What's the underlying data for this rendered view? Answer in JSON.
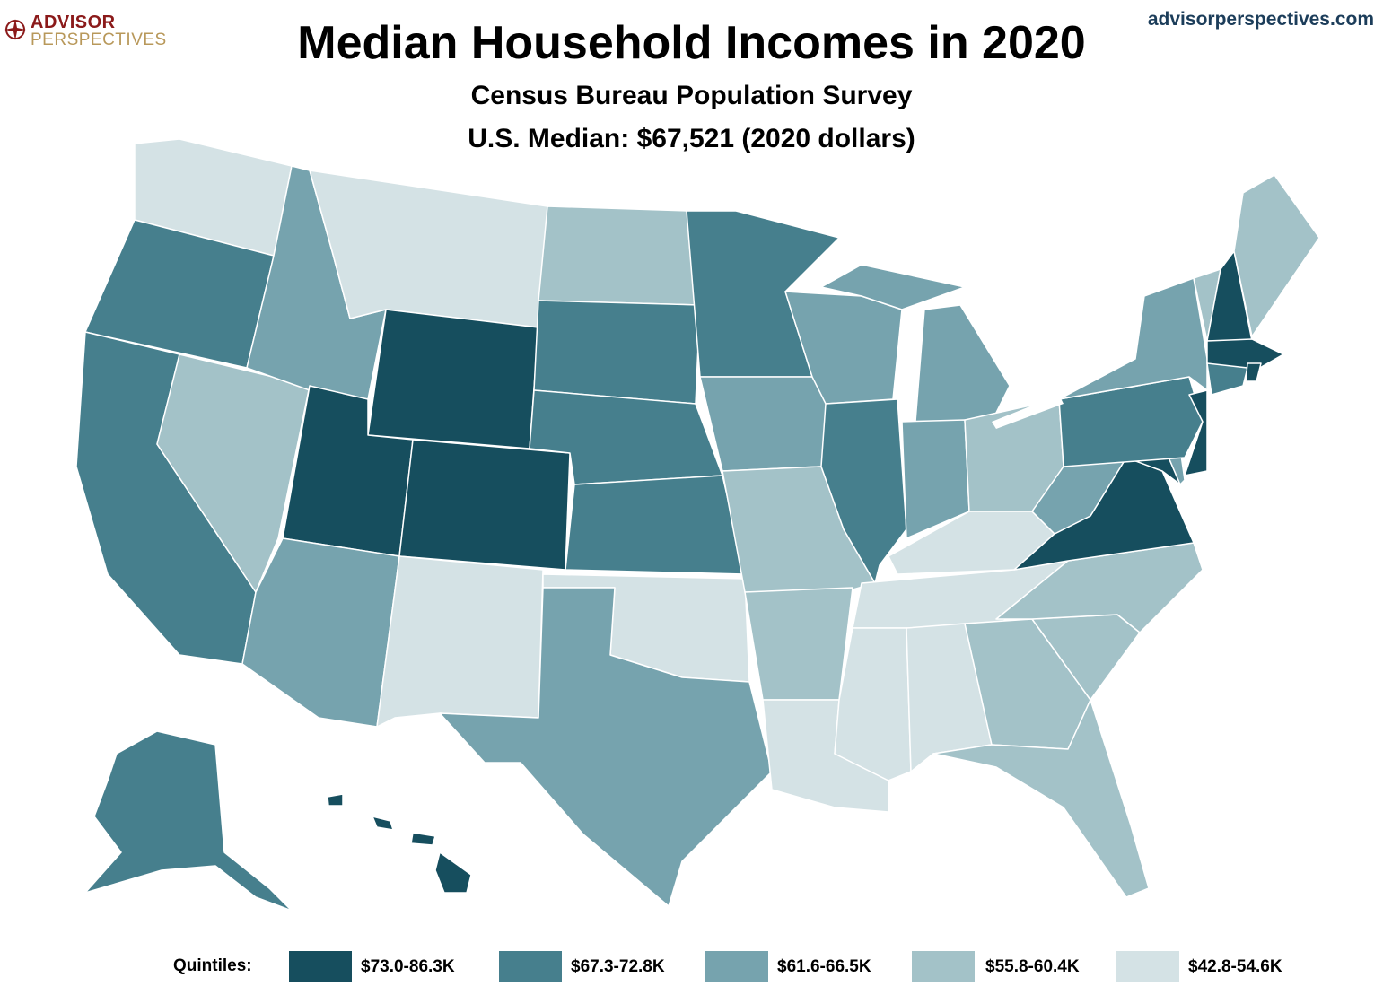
{
  "header": {
    "title": "Median Household Incomes in 2020",
    "subtitle": "Census Bureau Population Survey",
    "median": "U.S. Median: $67,521 (2020 dollars)",
    "site": "advisorperspectives.com",
    "logo_line1": "ADVISOR",
    "logo_line2": "PERSPECTIVES"
  },
  "colors": {
    "q1": "#164e5e",
    "q2": "#467f8d",
    "q3": "#76a3ae",
    "q4": "#a3c2c8",
    "q5": "#d4e2e5",
    "border": "#ffffff"
  },
  "legend": {
    "label": "Quintiles:",
    "items": [
      {
        "range": "$73.0-86.3K",
        "quintile": "q1"
      },
      {
        "range": "$67.3-72.8K",
        "quintile": "q2"
      },
      {
        "range": "$61.6-66.5K",
        "quintile": "q3"
      },
      {
        "range": "$55.8-60.4K",
        "quintile": "q4"
      },
      {
        "range": "$42.8-54.6K",
        "quintile": "q5"
      }
    ]
  },
  "states": {
    "WA": "q5",
    "OR": "q2",
    "CA": "q2",
    "NV": "q4",
    "ID": "q3",
    "MT": "q5",
    "WY": "q1",
    "UT": "q1",
    "CO": "q1",
    "AZ": "q3",
    "NM": "q5",
    "ND": "q4",
    "SD": "q2",
    "NE": "q2",
    "KS": "q2",
    "OK": "q5",
    "TX": "q3",
    "MN": "q2",
    "IA": "q3",
    "MO": "q4",
    "AR": "q4",
    "LA": "q5",
    "WI": "q3",
    "IL": "q2",
    "MI": "q3",
    "IN": "q3",
    "OH": "q4",
    "KY": "q5",
    "TN": "q5",
    "MS": "q5",
    "AL": "q5",
    "GA": "q4",
    "FL": "q4",
    "SC": "q4",
    "NC": "q4",
    "VA": "q1",
    "WV": "q3",
    "MD": "q1",
    "DE": "q3",
    "PA": "q2",
    "NJ": "q1",
    "NY": "q3",
    "CT": "q2",
    "RI": "q1",
    "MA": "q1",
    "VT": "q4",
    "NH": "q1",
    "ME": "q4",
    "AK": "q2",
    "HI": "q1"
  }
}
